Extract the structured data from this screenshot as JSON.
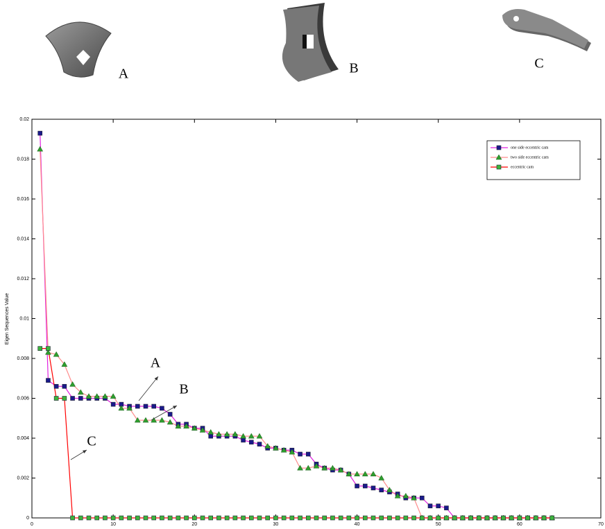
{
  "figure": {
    "parts": [
      {
        "label": "A"
      },
      {
        "label": "B"
      },
      {
        "label": "C"
      }
    ]
  },
  "chart_data": {
    "type": "line",
    "y_label": "Eigen Sequences Value",
    "x": [
      1,
      2,
      3,
      4,
      5,
      6,
      7,
      8,
      9,
      10,
      11,
      12,
      13,
      14,
      15,
      16,
      17,
      18,
      19,
      20,
      21,
      22,
      23,
      24,
      25,
      26,
      27,
      28,
      29,
      30,
      31,
      32,
      33,
      34,
      35,
      36,
      37,
      38,
      39,
      40,
      41,
      42,
      43,
      44,
      45,
      46,
      47,
      48,
      49,
      50,
      51,
      52,
      53,
      54,
      55,
      56,
      57,
      58,
      59,
      60,
      61,
      62,
      63,
      64
    ],
    "xlim": [
      0,
      70
    ],
    "xticks": [
      0,
      10,
      20,
      30,
      40,
      50,
      60,
      70
    ],
    "ylim": [
      0,
      0.02
    ],
    "yticks": [
      0,
      0.002,
      0.004,
      0.006,
      0.008,
      0.01,
      0.012,
      0.014,
      0.016,
      0.018,
      0.02
    ],
    "legend": "upper right",
    "series": [
      {
        "name": "one side eccentric cam",
        "color": "#e020e0",
        "marker": "square",
        "marker_color": "#1a1a8c",
        "values": [
          0.0193,
          0.0069,
          0.0066,
          0.0066,
          0.006,
          0.006,
          0.006,
          0.006,
          0.006,
          0.0057,
          0.0057,
          0.0056,
          0.0056,
          0.0056,
          0.0056,
          0.0055,
          0.0052,
          0.0047,
          0.0047,
          0.0045,
          0.0045,
          0.0041,
          0.0041,
          0.0041,
          0.0041,
          0.0039,
          0.0038,
          0.0037,
          0.0035,
          0.0035,
          0.0034,
          0.0034,
          0.0032,
          0.0032,
          0.0027,
          0.0025,
          0.0024,
          0.0024,
          0.0022,
          0.0016,
          0.0016,
          0.0015,
          0.0014,
          0.0013,
          0.0012,
          0.001,
          0.001,
          0.001,
          0.0006,
          0.0006,
          0.0005,
          0,
          0,
          0,
          0,
          0,
          0,
          0,
          0,
          0,
          0,
          0,
          0,
          0
        ]
      },
      {
        "name": "two side eccentric cam",
        "color": "#ff8c8c",
        "marker": "triangle",
        "marker_color": "#2e9e2e",
        "values": [
          0.0185,
          0.0083,
          0.0082,
          0.0077,
          0.0067,
          0.0063,
          0.0061,
          0.0061,
          0.0061,
          0.0061,
          0.0055,
          0.0055,
          0.0049,
          0.0049,
          0.0049,
          0.0049,
          0.0048,
          0.0046,
          0.0046,
          0.0045,
          0.0044,
          0.0043,
          0.0042,
          0.0042,
          0.0042,
          0.0041,
          0.0041,
          0.0041,
          0.0036,
          0.0035,
          0.0034,
          0.0033,
          0.0025,
          0.0025,
          0.0026,
          0.0025,
          0.0025,
          0.0024,
          0.0022,
          0.0022,
          0.0022,
          0.0022,
          0.002,
          0.0014,
          0.0011,
          0.0011,
          0.001,
          0,
          0,
          0,
          0,
          0,
          0,
          0,
          0,
          0,
          0,
          0,
          0,
          0,
          0,
          0,
          0,
          0
        ]
      },
      {
        "name": "eccentric cam",
        "color": "#ff0000",
        "marker": "square",
        "marker_color": "#3cb43c",
        "values": [
          0.0085,
          0.0085,
          0.006,
          0.006,
          0,
          0,
          0,
          0,
          0,
          0,
          0,
          0,
          0,
          0,
          0,
          0,
          0,
          0,
          0,
          0,
          0,
          0,
          0,
          0,
          0,
          0,
          0,
          0,
          0,
          0,
          0,
          0,
          0,
          0,
          0,
          0,
          0,
          0,
          0,
          0,
          0,
          0,
          0,
          0,
          0,
          0,
          0,
          0,
          0,
          0,
          0,
          0,
          0,
          0,
          0,
          0,
          0,
          0,
          0,
          0,
          0,
          0,
          0,
          0
        ]
      }
    ],
    "annotations": [
      {
        "text": "A"
      },
      {
        "text": "B"
      },
      {
        "text": "C"
      }
    ]
  }
}
